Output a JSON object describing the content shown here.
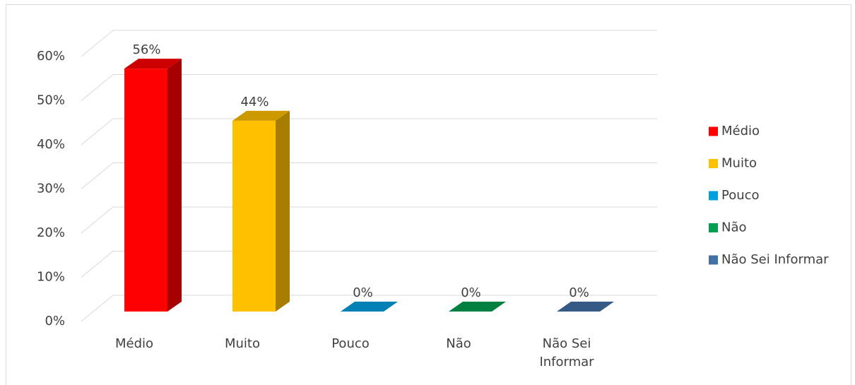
{
  "chart_data": {
    "type": "bar3d",
    "categories": [
      "Médio",
      "Muito",
      "Pouco",
      "Não",
      "Não Sei Informar"
    ],
    "values": [
      56,
      44,
      0,
      0,
      0
    ],
    "value_labels": [
      "56%",
      "44%",
      "0%",
      "0%",
      "0%"
    ],
    "colors": [
      "#ff0000",
      "#ffc000",
      "#00a0e0",
      "#00a050",
      "#4470a8"
    ],
    "ylim": [
      0,
      60
    ],
    "yticks": [
      {
        "value": 0,
        "label": "0%"
      },
      {
        "value": 10,
        "label": "10%"
      },
      {
        "value": 20,
        "label": "20%"
      },
      {
        "value": 30,
        "label": "30%"
      },
      {
        "value": 40,
        "label": "40%"
      },
      {
        "value": 50,
        "label": "50%"
      },
      {
        "value": 60,
        "label": "60%"
      }
    ],
    "grid": true,
    "legend": "right"
  }
}
